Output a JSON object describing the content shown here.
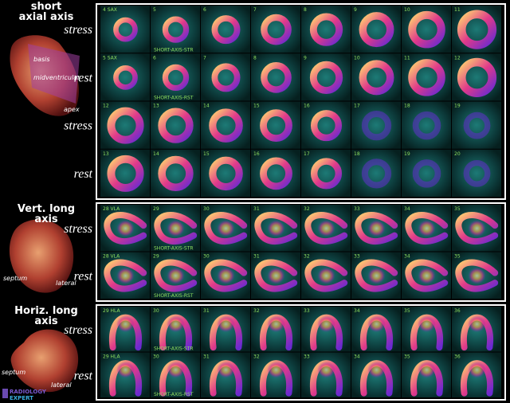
{
  "sections": [
    {
      "title": [
        "short",
        "axial axis"
      ],
      "heart_labels": [
        "basis",
        "midventricular",
        "apex"
      ],
      "rows": [
        {
          "label": "stress",
          "tiles": [
            "4 SAX",
            "5",
            "6",
            "7",
            "8",
            "9",
            "10",
            "11"
          ],
          "caption": "SHORT-AXIS-STR"
        },
        {
          "label": "rest",
          "tiles": [
            "5 SAX",
            "6",
            "7",
            "8",
            "9",
            "10",
            "11",
            "12"
          ],
          "caption": "SHORT-AXIS-RST"
        },
        {
          "label": "stress",
          "tiles": [
            "12",
            "13",
            "14",
            "15",
            "16",
            "17",
            "18",
            "19"
          ]
        },
        {
          "label": "rest",
          "tiles": [
            "13",
            "14",
            "15",
            "16",
            "17",
            "18",
            "19",
            "20"
          ]
        }
      ]
    },
    {
      "title": [
        "Vert. long",
        "axis"
      ],
      "heart_labels": [
        "septum",
        "lateral"
      ],
      "rows": [
        {
          "label": "stress",
          "tiles": [
            "28 VLA",
            "29",
            "30",
            "31",
            "32",
            "33",
            "34",
            "35"
          ],
          "caption": "SHORT-AXIS-STR"
        },
        {
          "label": "rest",
          "tiles": [
            "28 VLA",
            "29",
            "30",
            "31",
            "32",
            "33",
            "34",
            "35"
          ],
          "caption": "SHORT-AXIS-RST"
        }
      ]
    },
    {
      "title": [
        "Horiz. long",
        "axis"
      ],
      "heart_labels": [
        "septum",
        "lateral"
      ],
      "rows": [
        {
          "label": "stress",
          "tiles": [
            "29 HLA",
            "30",
            "31",
            "32",
            "33",
            "34",
            "35",
            "36"
          ],
          "caption": "SHORT-AXIS-STR"
        },
        {
          "label": "rest",
          "tiles": [
            "29 HLA",
            "30",
            "31",
            "32",
            "33",
            "34",
            "35",
            "36"
          ],
          "caption": "SHORT-AXIS-RST"
        }
      ]
    }
  ],
  "logo": [
    "RADIOLOGY",
    "EXPERT"
  ]
}
